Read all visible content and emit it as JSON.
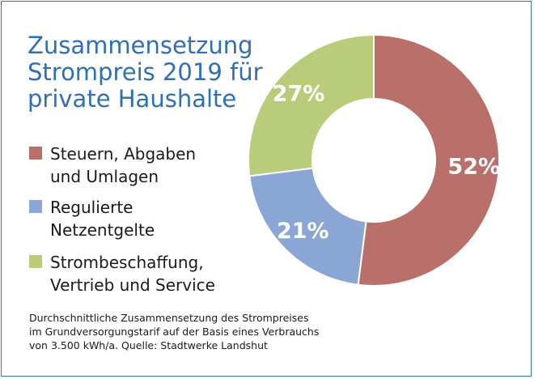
{
  "title_lines": [
    "Zusammensetzung",
    "Strompreis 2019 für",
    "private Haushalte"
  ],
  "legend": [
    {
      "lines": [
        "Steuern, Abgaben",
        "und Umlagen"
      ],
      "color": "#b9706b"
    },
    {
      "lines": [
        "Regulierte",
        "Netzentgelte"
      ],
      "color": "#8aa6d4"
    },
    {
      "lines": [
        "Strombeschaffung,",
        "Vertrieb und Service"
      ],
      "color": "#b8cc7a"
    }
  ],
  "footnote_lines": [
    "Durchschnittliche Zusammensetzung des Strompreises",
    "im Grundversorgungstarif auf der Basis eines Verbrauchs",
    "von 3.500 kWh/a. Quelle: Stadtwerke Landshut"
  ],
  "chart_data": {
    "type": "pie",
    "variant": "donut",
    "title": "Zusammensetzung Strompreis 2019 für private Haushalte",
    "categories": [
      "Steuern, Abgaben und Umlagen",
      "Regulierte Netzentgelte",
      "Strombeschaffung, Vertrieb und Service"
    ],
    "values": [
      52,
      21,
      27
    ],
    "data_labels": [
      "52%",
      "21%",
      "27%"
    ],
    "colors": [
      "#b9706b",
      "#8aa6d4",
      "#b8cc7a"
    ],
    "start_angle_deg": 0,
    "direction": "clockwise",
    "legend_position": "left"
  }
}
